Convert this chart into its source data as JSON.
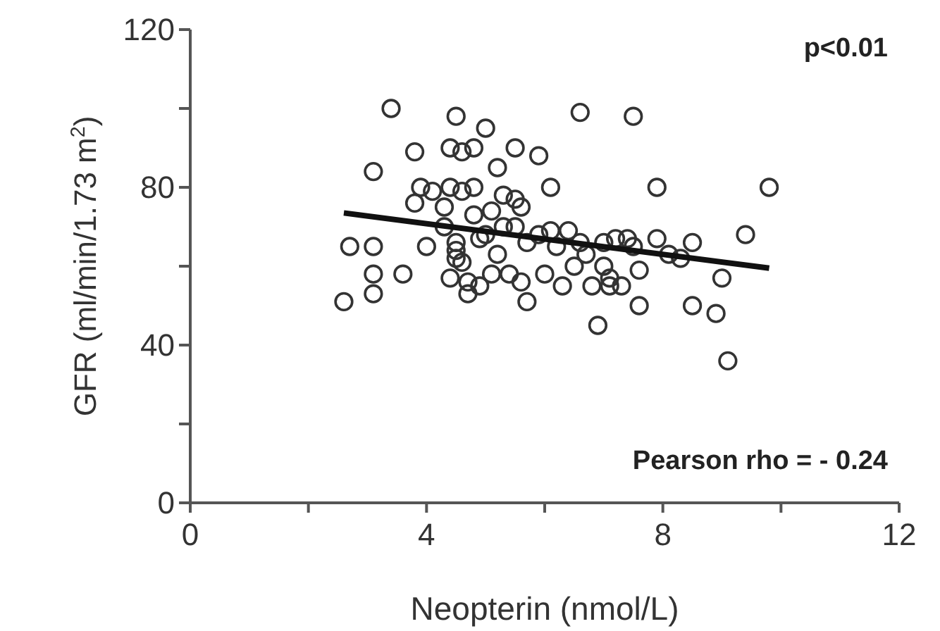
{
  "chart_data": {
    "type": "scatter",
    "xlabel": "Neopterin (nmol/L)",
    "ylabel": "GFR (ml/min/1.73 m$^{2}$)",
    "xlim": [
      0,
      12
    ],
    "xticks": [
      0,
      {
        "value": 2,
        "label": null
      },
      4,
      {
        "value": 6,
        "label": null
      },
      8,
      {
        "value": 10,
        "label": null
      },
      12
    ],
    "ylim": [
      0,
      120
    ],
    "yticks": [
      0,
      {
        "value": 20,
        "label": null
      },
      40,
      {
        "value": 60,
        "label": null
      },
      80,
      {
        "value": 100,
        "label": null
      },
      120
    ],
    "grid": false,
    "marker": "circle",
    "annotations": [
      "p<0.01",
      "Pearson rho = - 0.24"
    ],
    "series": [
      {
        "color": "#333333",
        "x": [
          2.6,
          2.7,
          3.1,
          3.1,
          3.1,
          3.1,
          3.4,
          3.6,
          3.8,
          3.8,
          3.9,
          4.0,
          4.1,
          4.3,
          4.3,
          4.4,
          4.4,
          4.4,
          4.5,
          4.5,
          4.5,
          4.5,
          4.6,
          4.6,
          4.6,
          4.7,
          4.7,
          4.8,
          4.8,
          4.8,
          4.9,
          4.9,
          5.0,
          5.0,
          5.1,
          5.1,
          5.2,
          5.2,
          5.3,
          5.3,
          5.4,
          5.5,
          5.5,
          5.5,
          5.6,
          5.6,
          5.7,
          5.7,
          5.9,
          5.9,
          6.0,
          6.1,
          6.1,
          6.2,
          6.3,
          6.4,
          6.5,
          6.6,
          6.6,
          6.7,
          6.8,
          6.9,
          7.0,
          7.0,
          7.1,
          7.1,
          7.2,
          7.3,
          7.4,
          7.5,
          7.5,
          7.6,
          7.6,
          7.9,
          7.9,
          8.1,
          8.3,
          8.5,
          8.5,
          8.9,
          9.0,
          9.1,
          9.4,
          9.8
        ],
        "values": [
          51,
          65,
          53,
          58,
          65,
          84,
          100,
          58,
          76,
          89,
          80,
          65,
          79,
          75,
          70,
          80,
          90,
          57,
          98,
          66,
          64,
          62,
          79,
          89,
          61,
          56,
          53,
          90,
          80,
          73,
          67,
          55,
          95,
          68,
          74,
          58,
          85,
          63,
          78,
          70,
          58,
          90,
          77,
          70,
          75,
          56,
          51,
          66,
          88,
          68,
          58,
          80,
          69,
          65,
          55,
          69,
          60,
          99,
          66,
          63,
          55,
          45,
          66,
          60,
          57,
          55,
          67,
          55,
          67,
          98,
          65,
          59,
          50,
          80,
          67,
          63,
          62,
          66,
          50,
          48,
          57,
          36,
          68,
          80
        ]
      },
      {
        "type": "line",
        "color": "#111111",
        "x": [
          2.6,
          9.8
        ],
        "values": [
          73.5,
          59.5
        ],
        "marker": "none",
        "line_style": "solid"
      }
    ]
  }
}
